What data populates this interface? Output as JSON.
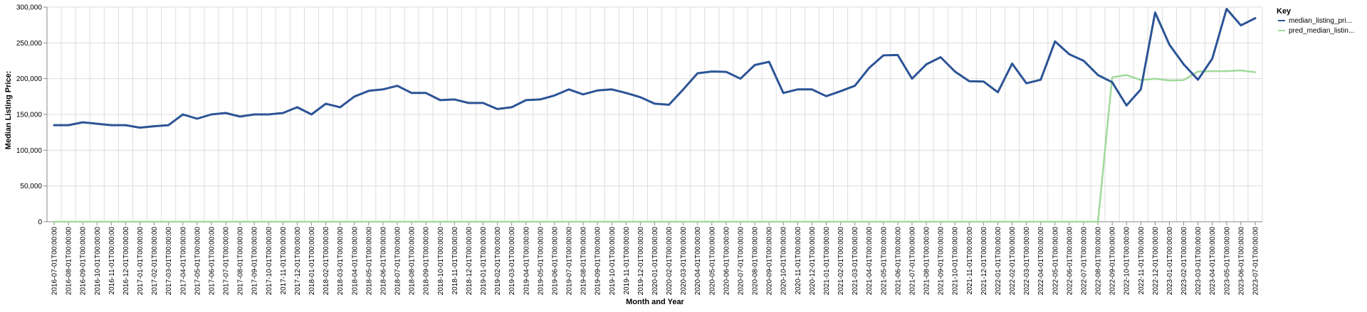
{
  "chart_data": {
    "type": "line",
    "xlabel": "Month and Year",
    "ylabel": "Median Listing Price:",
    "ylim": [
      0,
      300000
    ],
    "yticks": [
      "0",
      "50,000",
      "100,000",
      "150,000",
      "200,000",
      "250,000",
      "300,000"
    ],
    "ytick_values": [
      0,
      50000,
      100000,
      150000,
      200000,
      250000,
      300000
    ],
    "grid": true,
    "legend": {
      "title": "Key",
      "placement": "top-right"
    },
    "x": [
      "2016-07-01T00:00:00",
      "2016-08-01T00:00:00",
      "2016-09-01T00:00:00",
      "2016-10-01T00:00:00",
      "2016-11-01T00:00:00",
      "2016-12-01T00:00:00",
      "2017-01-01T00:00:00",
      "2017-02-01T00:00:00",
      "2017-03-01T00:00:00",
      "2017-04-01T00:00:00",
      "2017-05-01T00:00:00",
      "2017-06-01T00:00:00",
      "2017-07-01T00:00:00",
      "2017-08-01T00:00:00",
      "2017-09-01T00:00:00",
      "2017-10-01T00:00:00",
      "2017-11-01T00:00:00",
      "2017-12-01T00:00:00",
      "2018-01-01T00:00:00",
      "2018-02-01T00:00:00",
      "2018-03-01T00:00:00",
      "2018-04-01T00:00:00",
      "2018-05-01T00:00:00",
      "2018-06-01T00:00:00",
      "2018-07-01T00:00:00",
      "2018-08-01T00:00:00",
      "2018-09-01T00:00:00",
      "2018-10-01T00:00:00",
      "2018-11-01T00:00:00",
      "2018-12-01T00:00:00",
      "2019-01-01T00:00:00",
      "2019-02-01T00:00:00",
      "2019-03-01T00:00:00",
      "2019-04-01T00:00:00",
      "2019-05-01T00:00:00",
      "2019-06-01T00:00:00",
      "2019-07-01T00:00:00",
      "2019-08-01T00:00:00",
      "2019-09-01T00:00:00",
      "2019-10-01T00:00:00",
      "2019-11-01T00:00:00",
      "2019-12-01T00:00:00",
      "2020-01-01T00:00:00",
      "2020-02-01T00:00:00",
      "2020-03-01T00:00:00",
      "2020-04-01T00:00:00",
      "2020-05-01T00:00:00",
      "2020-06-01T00:00:00",
      "2020-07-01T00:00:00",
      "2020-08-01T00:00:00",
      "2020-09-01T00:00:00",
      "2020-10-01T00:00:00",
      "2020-11-01T00:00:00",
      "2020-12-01T00:00:00",
      "2021-01-01T00:00:00",
      "2021-02-01T00:00:00",
      "2021-03-01T00:00:00",
      "2021-04-01T00:00:00",
      "2021-05-01T00:00:00",
      "2021-06-01T00:00:00",
      "2021-07-01T00:00:00",
      "2021-08-01T00:00:00",
      "2021-09-01T00:00:00",
      "2021-10-01T00:00:00",
      "2021-11-01T00:00:00",
      "2021-12-01T00:00:00",
      "2022-01-01T00:00:00",
      "2022-02-01T00:00:00",
      "2022-03-01T00:00:00",
      "2022-04-01T00:00:00",
      "2022-05-01T00:00:00",
      "2022-06-01T00:00:00",
      "2022-07-01T00:00:00",
      "2022-08-01T00:00:00",
      "2022-09-01T00:00:00",
      "2022-10-01T00:00:00",
      "2022-11-01T00:00:00",
      "2022-12-01T00:00:00",
      "2023-01-01T00:00:00",
      "2023-02-01T00:00:00",
      "2023-03-01T00:00:00",
      "2023-04-01T00:00:00",
      "2023-05-01T00:00:00",
      "2023-06-01T00:00:00",
      "2023-07-01T00:00:00"
    ],
    "series": [
      {
        "name": "median_listing_pri...",
        "color": "#2c5496",
        "values": [
          135000,
          135000,
          139000,
          137000,
          135000,
          135000,
          131500,
          133500,
          135000,
          150000,
          144000,
          150000,
          152000,
          147000,
          150000,
          150000,
          152000,
          160000,
          150000,
          165000,
          160000,
          175000,
          183000,
          185000,
          190000,
          180000,
          180000,
          170000,
          171000,
          166000,
          166000,
          157500,
          160000,
          170000,
          171000,
          176500,
          185000,
          178000,
          183500,
          185000,
          180000,
          174000,
          165000,
          163500,
          185000,
          207500,
          210000,
          209500,
          200000,
          219000,
          223500,
          180000,
          185000,
          185000,
          175500,
          182500,
          190000,
          215000,
          232500,
          233000,
          200000,
          220000,
          230000,
          210000,
          196500,
          196000,
          181000,
          221000,
          193500,
          198500,
          252000,
          234000,
          225000,
          205000,
          195000,
          162500,
          185000,
          292500,
          247500,
          220000,
          198500,
          228000,
          297500,
          274500,
          284500
        ]
      },
      {
        "name": "pred_median_listin...",
        "color": "#a1d99b",
        "values": [
          0,
          0,
          0,
          0,
          0,
          0,
          0,
          0,
          0,
          0,
          0,
          0,
          0,
          0,
          0,
          0,
          0,
          0,
          0,
          0,
          0,
          0,
          0,
          0,
          0,
          0,
          0,
          0,
          0,
          0,
          0,
          0,
          0,
          0,
          0,
          0,
          0,
          0,
          0,
          0,
          0,
          0,
          0,
          0,
          0,
          0,
          0,
          0,
          0,
          0,
          0,
          0,
          0,
          0,
          0,
          0,
          0,
          0,
          0,
          0,
          0,
          0,
          0,
          0,
          0,
          0,
          0,
          0,
          0,
          0,
          0,
          0,
          0,
          0,
          202000,
          205000,
          198000,
          200000,
          197500,
          198000,
          210000,
          210500,
          210500,
          211500,
          209000
        ]
      }
    ]
  }
}
